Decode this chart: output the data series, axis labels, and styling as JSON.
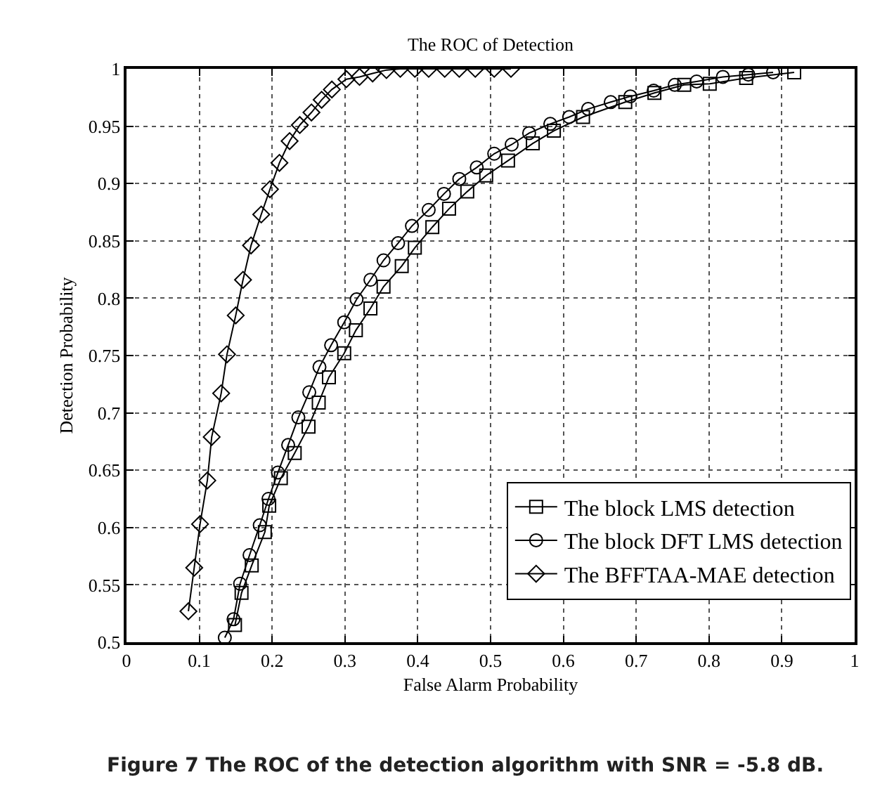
{
  "chart_data": {
    "type": "line",
    "title": "The ROC of Detection",
    "xlabel": "False Alarm Probability",
    "ylabel": "Detection Probability",
    "xlim": [
      0,
      1
    ],
    "xticks": [
      0,
      0.1,
      0.2,
      0.3,
      0.4,
      0.5,
      0.6,
      0.7,
      0.8,
      0.9,
      1
    ],
    "ylim": [
      0.5,
      1
    ],
    "yticks": [
      0.5,
      0.55,
      0.6,
      0.65,
      0.7,
      0.75,
      0.8,
      0.85,
      0.9,
      0.95,
      1
    ],
    "grid": true,
    "legend": "bottom right",
    "line_style": "solid",
    "series": [
      {
        "name": "The block LMS detection",
        "color": "#000000",
        "marker": "square",
        "x": [
          0.149,
          0.158,
          0.172,
          0.19,
          0.196,
          0.212,
          0.231,
          0.25,
          0.264,
          0.278,
          0.299,
          0.315,
          0.335,
          0.353,
          0.378,
          0.396,
          0.42,
          0.443,
          0.468,
          0.494,
          0.524,
          0.558,
          0.587,
          0.627,
          0.685,
          0.725,
          0.766,
          0.801,
          0.851,
          0.917
        ],
        "values": [
          0.515,
          0.543,
          0.567,
          0.596,
          0.619,
          0.643,
          0.665,
          0.688,
          0.709,
          0.731,
          0.752,
          0.772,
          0.791,
          0.81,
          0.828,
          0.844,
          0.862,
          0.878,
          0.893,
          0.907,
          0.92,
          0.935,
          0.946,
          0.958,
          0.971,
          0.979,
          0.986,
          0.987,
          0.992,
          0.997
        ]
      },
      {
        "name": "The block DFT LMS detection",
        "color": "#000000",
        "marker": "circle",
        "x": [
          0.135,
          0.147,
          0.156,
          0.169,
          0.183,
          0.195,
          0.208,
          0.222,
          0.236,
          0.251,
          0.265,
          0.281,
          0.299,
          0.316,
          0.335,
          0.353,
          0.373,
          0.392,
          0.415,
          0.436,
          0.457,
          0.481,
          0.505,
          0.529,
          0.553,
          0.582,
          0.608,
          0.634,
          0.665,
          0.692,
          0.724,
          0.753,
          0.783,
          0.819,
          0.854,
          0.888
        ],
        "values": [
          0.504,
          0.52,
          0.551,
          0.576,
          0.602,
          0.625,
          0.648,
          0.672,
          0.696,
          0.718,
          0.74,
          0.759,
          0.779,
          0.799,
          0.816,
          0.833,
          0.848,
          0.863,
          0.877,
          0.891,
          0.904,
          0.914,
          0.926,
          0.934,
          0.944,
          0.952,
          0.958,
          0.965,
          0.971,
          0.976,
          0.981,
          0.986,
          0.989,
          0.993,
          0.995,
          0.997
        ]
      },
      {
        "name": "The BFFTAA-MAE detection",
        "color": "#000000",
        "marker": "diamond",
        "x": [
          0.085,
          0.093,
          0.101,
          0.111,
          0.117,
          0.13,
          0.138,
          0.15,
          0.16,
          0.171,
          0.185,
          0.197,
          0.21,
          0.224,
          0.238,
          0.254,
          0.268,
          0.282,
          0.302,
          0.32,
          0.338,
          0.357,
          0.376,
          0.396,
          0.415,
          0.437,
          0.457,
          0.479,
          0.505,
          0.528
        ],
        "values": [
          0.527,
          0.565,
          0.603,
          0.641,
          0.679,
          0.717,
          0.751,
          0.785,
          0.816,
          0.846,
          0.873,
          0.895,
          0.918,
          0.937,
          0.951,
          0.962,
          0.973,
          0.982,
          0.991,
          0.993,
          0.996,
          0.999,
          1,
          1,
          1,
          1,
          1,
          1,
          1,
          1
        ]
      }
    ],
    "annotations": [
      "Figure 7 The ROC of the detection algorithm with SNR = -5.8 dB."
    ]
  }
}
